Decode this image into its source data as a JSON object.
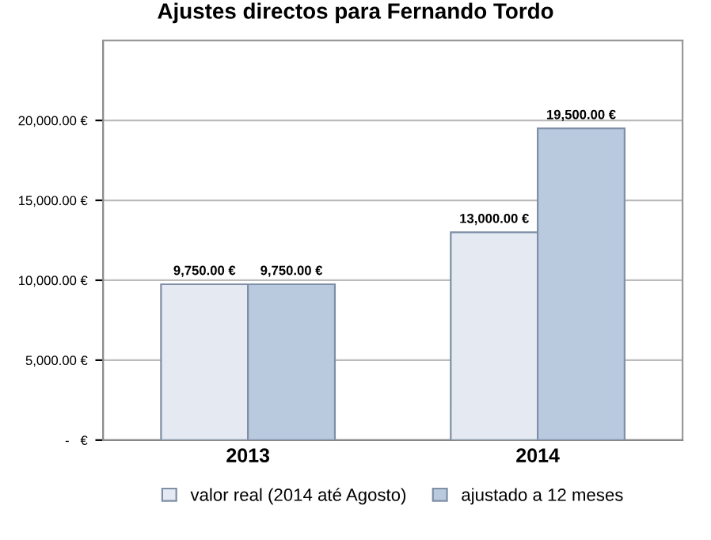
{
  "chart_data": {
    "type": "bar",
    "title": "Ajustes directos para Fernando Tordo",
    "categories": [
      "2013",
      "2014"
    ],
    "series": [
      {
        "name": "valor real (2014 até Agosto)",
        "color": "#e4e9f2",
        "values": [
          9750,
          13000
        ],
        "value_labels": [
          "9,750.00 €",
          "13,000.00 €"
        ]
      },
      {
        "name": "ajustado a 12 meses",
        "color": "#b9c9de",
        "values": [
          9750,
          19500
        ],
        "value_labels": [
          "9,750.00 €",
          "19,500.00 €"
        ]
      }
    ],
    "ylim": [
      0,
      25000
    ],
    "yticks": [
      {
        "value": 0,
        "label": "-   €"
      },
      {
        "value": 5000,
        "label": "5,000.00 €"
      },
      {
        "value": 10000,
        "label": "10,000.00 €"
      },
      {
        "value": 15000,
        "label": "15,000.00 €"
      },
      {
        "value": 20000,
        "label": "20,000.00 €"
      }
    ],
    "grid": "y",
    "legend": "bottom"
  }
}
